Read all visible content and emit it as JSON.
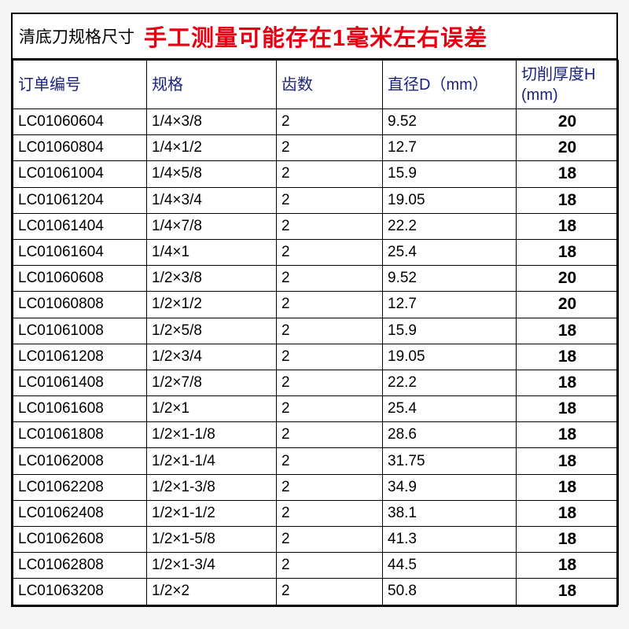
{
  "title_left": "清底刀规格尺寸",
  "title_warn": "手工测量可能存在1毫米左右误差",
  "columns": [
    "订单编号",
    "规格",
    "齿数",
    "直径D（mm）",
    "切削厚度H (mm)"
  ],
  "rows": [
    [
      "LC01060604",
      "1/4×3/8",
      "2",
      "9.52",
      "20"
    ],
    [
      "LC01060804",
      "1/4×1/2",
      "2",
      "12.7",
      "20"
    ],
    [
      "LC01061004",
      "1/4×5/8",
      "2",
      "15.9",
      "18"
    ],
    [
      "LC01061204",
      "1/4×3/4",
      "2",
      "19.05",
      "18"
    ],
    [
      "LC01061404",
      "1/4×7/8",
      "2",
      "22.2",
      "18"
    ],
    [
      "LC01061604",
      "1/4×1",
      "2",
      "25.4",
      "18"
    ],
    [
      "LC01060608",
      "1/2×3/8",
      "2",
      "9.52",
      "20"
    ],
    [
      "LC01060808",
      "1/2×1/2",
      "2",
      "12.7",
      "20"
    ],
    [
      "LC01061008",
      "1/2×5/8",
      "2",
      "15.9",
      "18"
    ],
    [
      "LC01061208",
      "1/2×3/4",
      "2",
      "19.05",
      "18"
    ],
    [
      "LC01061408",
      "1/2×7/8",
      "2",
      "22.2",
      "18"
    ],
    [
      "LC01061608",
      "1/2×1",
      "2",
      "25.4",
      "18"
    ],
    [
      "LC01061808",
      "1/2×1-1/8",
      "2",
      "28.6",
      "18"
    ],
    [
      "LC01062008",
      "1/2×1-1/4",
      "2",
      "31.75",
      "18"
    ],
    [
      "LC01062208",
      "1/2×1-3/8",
      "2",
      "34.9",
      "18"
    ],
    [
      "LC01062408",
      "1/2×1-1/2",
      "2",
      "38.1",
      "18"
    ],
    [
      "LC01062608",
      "1/2×1-5/8",
      "2",
      "41.3",
      "18"
    ],
    [
      "LC01062808",
      "1/2×1-3/4",
      "2",
      "44.5",
      "18"
    ],
    [
      "LC01063208",
      "1/2×2",
      "2",
      "50.8",
      "18"
    ]
  ],
  "colors": {
    "warn_text": "#e60012",
    "header_text": "#1a237e",
    "border": "#000000",
    "background": "#ffffff"
  }
}
